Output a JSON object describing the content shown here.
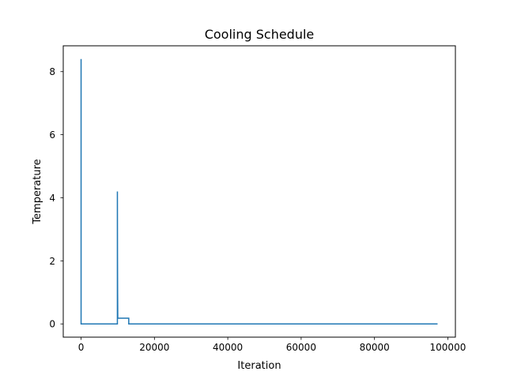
{
  "chart_data": {
    "type": "line",
    "title": "Cooling Schedule",
    "xlabel": "Iteration",
    "ylabel": "Temperature",
    "xlim": [
      -4860,
      102060
    ],
    "ylim": [
      -0.42,
      8.82
    ],
    "xticks": [
      0,
      20000,
      40000,
      60000,
      80000,
      100000
    ],
    "xtick_labels": [
      "0",
      "20000",
      "40000",
      "60000",
      "80000",
      "100000"
    ],
    "yticks": [
      0,
      2,
      4,
      6,
      8
    ],
    "ytick_labels": [
      "0",
      "2",
      "4",
      "6",
      "8"
    ],
    "grid": false,
    "legend": "none",
    "line_color": "#1f77b4",
    "series": [
      {
        "x": [
          0,
          0,
          10,
          9900,
          9900,
          9930,
          9960,
          9990,
          10000,
          10000,
          13000,
          13000,
          97200
        ],
        "y": [
          8.4,
          0.0,
          0.0,
          0.0,
          4.2,
          2.1,
          1.0,
          0.5,
          0.25,
          0.18,
          0.18,
          0.0,
          0.0
        ]
      }
    ]
  }
}
